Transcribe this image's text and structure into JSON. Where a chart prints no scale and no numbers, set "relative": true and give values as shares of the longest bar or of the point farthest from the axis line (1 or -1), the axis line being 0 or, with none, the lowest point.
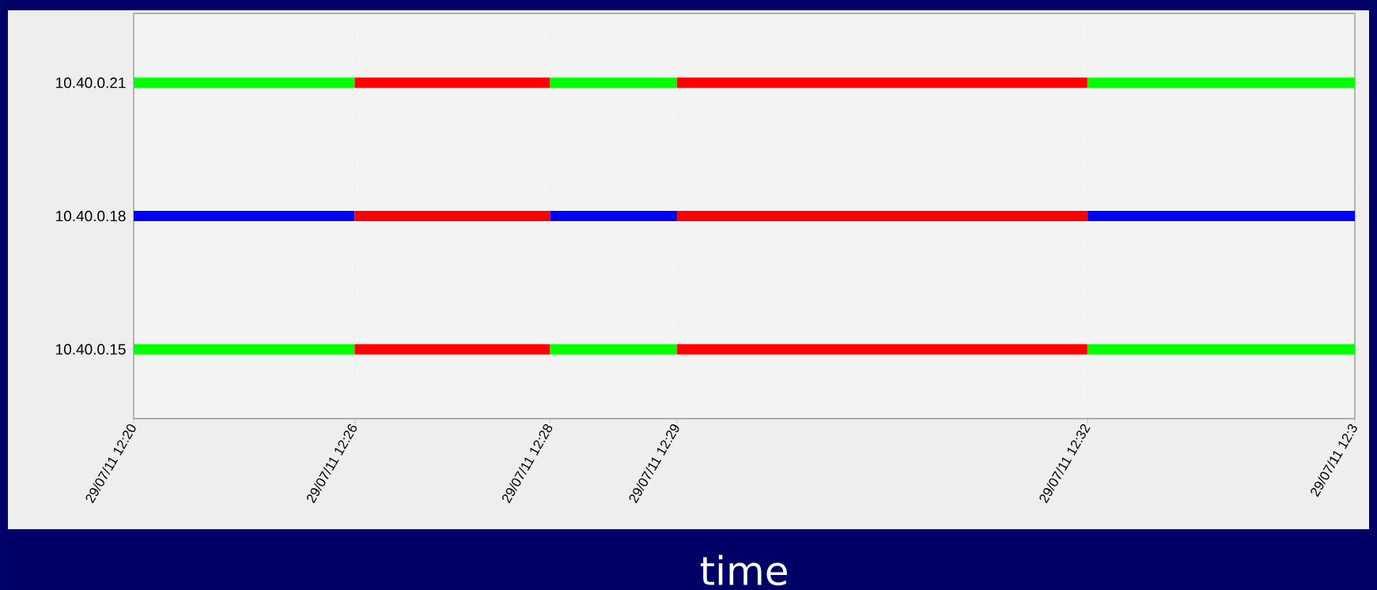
{
  "chart_data": {
    "type": "bar",
    "orientation": "horizontal",
    "stacked": true,
    "relative": true,
    "xlabel": "time",
    "categories": [
      "10.40.0.21",
      "10.40.0.18",
      "10.40.0.15"
    ],
    "series": [
      {
        "colors": [
          "#00ff00",
          "#0000ff",
          "#00ff00"
        ],
        "values": [
          0.181,
          0.181,
          0.181
        ]
      },
      {
        "color": "#ff0000",
        "values": [
          0.16,
          0.16,
          0.16
        ]
      },
      {
        "colors": [
          "#00ff00",
          "#0000ff",
          "#00ff00"
        ],
        "values": [
          0.104,
          0.104,
          0.104
        ]
      },
      {
        "color": "#ff0000",
        "values": [
          0.336,
          0.336,
          0.336
        ]
      },
      {
        "colors": [
          "#00ff00",
          "#0000ff",
          "#00ff00"
        ],
        "values": [
          0.219,
          0.219,
          0.219
        ]
      }
    ],
    "annotations": [
      "29/07/11 12:20",
      "29/07/11 12:26",
      "29/07/11 12:28",
      "29/07/11 12:29",
      "29/07/11 12:32",
      "29/07/11 12:3"
    ],
    "grid": "x"
  }
}
